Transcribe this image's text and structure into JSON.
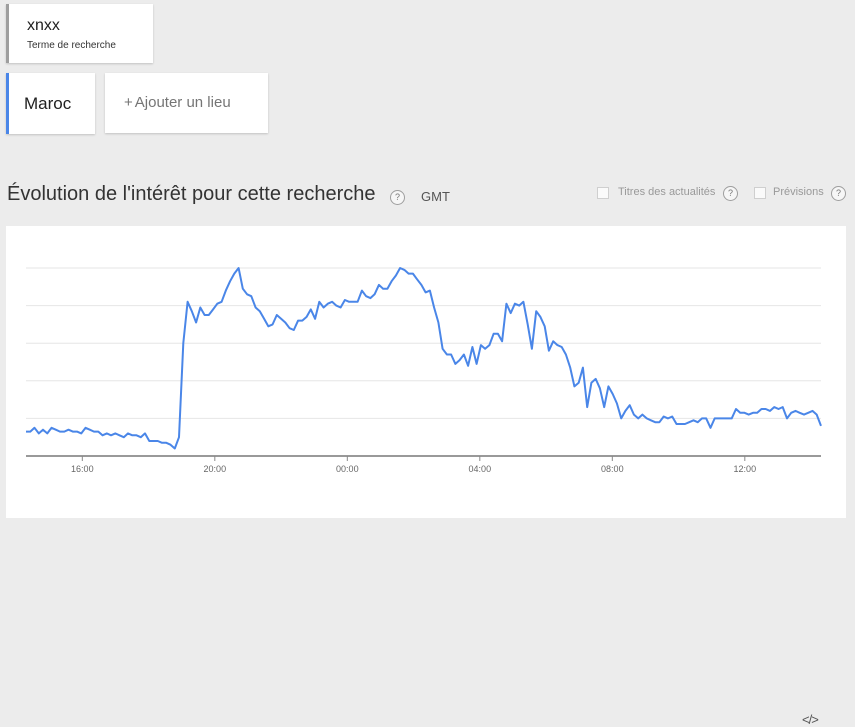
{
  "search_term": {
    "name": "xnxx",
    "subtitle": "Terme de recherche"
  },
  "location": {
    "name": "Maroc",
    "add_label": "Ajouter un lieu",
    "add_prefix": "+"
  },
  "section": {
    "title": "Évolution de l'intérêt pour cette recherche",
    "timezone": "GMT",
    "help": "?"
  },
  "options": {
    "news_headlines": "Titres des actualités",
    "forecast": "Prévisions"
  },
  "colors": {
    "line": "#4a86e8",
    "grid": "#e6e6e6",
    "accent": "#4a86e8"
  },
  "embed_icon": "</>",
  "chart_data": {
    "type": "line",
    "title": "",
    "xlabel": "",
    "ylabel": "",
    "x_tick_labels": [
      "16:00",
      "20:00",
      "00:00",
      "04:00",
      "08:00",
      "12:00"
    ],
    "x_tick_hours": [
      16,
      20,
      24,
      28,
      32,
      36
    ],
    "xlim_hours": [
      14.3,
      38.3
    ],
    "ylim": [
      0,
      100
    ],
    "gridlines": [
      20,
      40,
      60,
      80,
      100
    ],
    "grid": true,
    "series": [
      {
        "name": "",
        "values": [
          13,
          13,
          15,
          12,
          14,
          12,
          15,
          14,
          13,
          13,
          14,
          13,
          13,
          12,
          15,
          14,
          13,
          13,
          11,
          12,
          11,
          12,
          11,
          10,
          12,
          11,
          11,
          10,
          12,
          8,
          8,
          8,
          7,
          7,
          6,
          4,
          10,
          60,
          82,
          77,
          71,
          79,
          75,
          75,
          78,
          81,
          82,
          88,
          93,
          97,
          100,
          89,
          86,
          85,
          79,
          77,
          73,
          69,
          70,
          75,
          73,
          71,
          68,
          67,
          72,
          72,
          74,
          78,
          73,
          82,
          79,
          81,
          82,
          80,
          79,
          83,
          82,
          82,
          82,
          88,
          85,
          84,
          86,
          91,
          89,
          89,
          93,
          96,
          100,
          99,
          97,
          97,
          94,
          91,
          87,
          88,
          79,
          71,
          57,
          54,
          54,
          49,
          51,
          54,
          48,
          58,
          49,
          59,
          57,
          59,
          65,
          65,
          61,
          81,
          76,
          81,
          80,
          82,
          70,
          57,
          77,
          74,
          69,
          56,
          61,
          59,
          58,
          54,
          47,
          37,
          39,
          47,
          26,
          39,
          41,
          36,
          26,
          37,
          33,
          28,
          20,
          24,
          27,
          22,
          20,
          22,
          20,
          19,
          18,
          18,
          21,
          20,
          21,
          17,
          17,
          17,
          18,
          19,
          18,
          20,
          20,
          15,
          20,
          20,
          20,
          20,
          20,
          25,
          23,
          23,
          22,
          23,
          23,
          25,
          25,
          24,
          26,
          25,
          26,
          20,
          23,
          24,
          23,
          22,
          23,
          24,
          22,
          16
        ]
      }
    ]
  }
}
